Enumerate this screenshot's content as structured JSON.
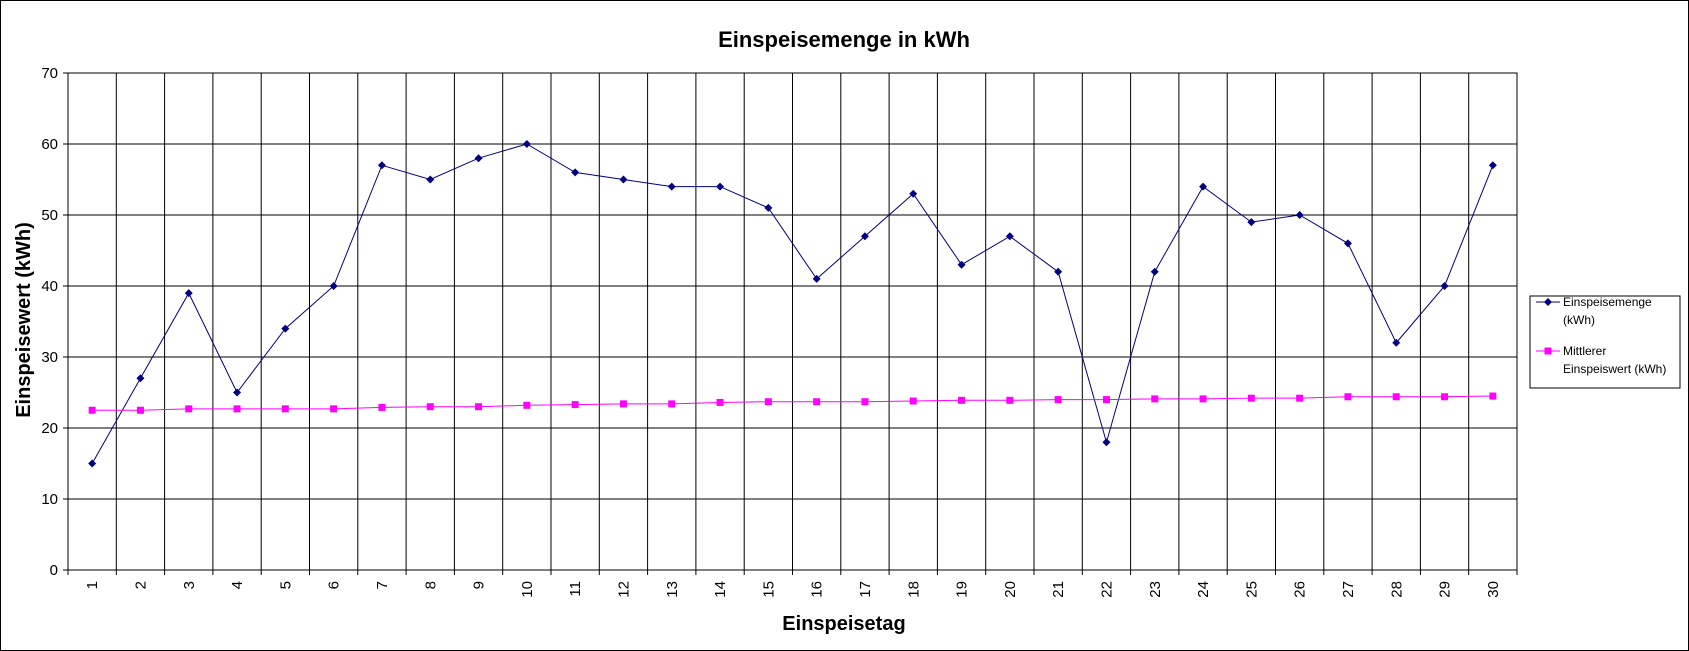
{
  "chart_data": {
    "type": "line",
    "title": "Einspeisemenge in kWh",
    "xlabel": "Einspeisetag",
    "ylabel": "Einspeisewert  (kWh)",
    "categories": [
      "1",
      "2",
      "3",
      "4",
      "5",
      "6",
      "7",
      "8",
      "9",
      "10",
      "11",
      "12",
      "13",
      "14",
      "15",
      "16",
      "17",
      "18",
      "19",
      "20",
      "21",
      "22",
      "23",
      "24",
      "25",
      "26",
      "27",
      "28",
      "29",
      "30"
    ],
    "ylim": [
      0,
      70
    ],
    "yticks": [
      0,
      10,
      20,
      30,
      40,
      50,
      60,
      70
    ],
    "grid": true,
    "legend_position": "right",
    "series": [
      {
        "name": "Einspeisemenge (kWh)",
        "legend_lines": [
          "Einspeisemenge",
          "(kWh)"
        ],
        "color": "#000080",
        "marker": "diamond",
        "values": [
          15,
          27,
          39,
          25,
          34,
          40,
          57,
          55,
          58,
          60,
          56,
          55,
          54,
          54,
          51,
          41,
          47,
          53,
          43,
          47,
          42,
          18,
          42,
          54,
          49,
          50,
          46,
          32,
          40,
          57
        ]
      },
      {
        "name": "Mittlerer Einspeiswert (kWh)",
        "legend_lines": [
          "Mittlerer",
          "Einspeiswert (kWh)"
        ],
        "color": "#ff00ff",
        "marker": "square",
        "values": [
          22.5,
          22.5,
          22.7,
          22.7,
          22.7,
          22.7,
          22.9,
          23.0,
          23.0,
          23.2,
          23.3,
          23.4,
          23.4,
          23.6,
          23.7,
          23.7,
          23.7,
          23.8,
          23.9,
          23.9,
          24.0,
          24.0,
          24.1,
          24.1,
          24.2,
          24.2,
          24.4,
          24.4,
          24.4,
          24.5
        ]
      }
    ]
  }
}
